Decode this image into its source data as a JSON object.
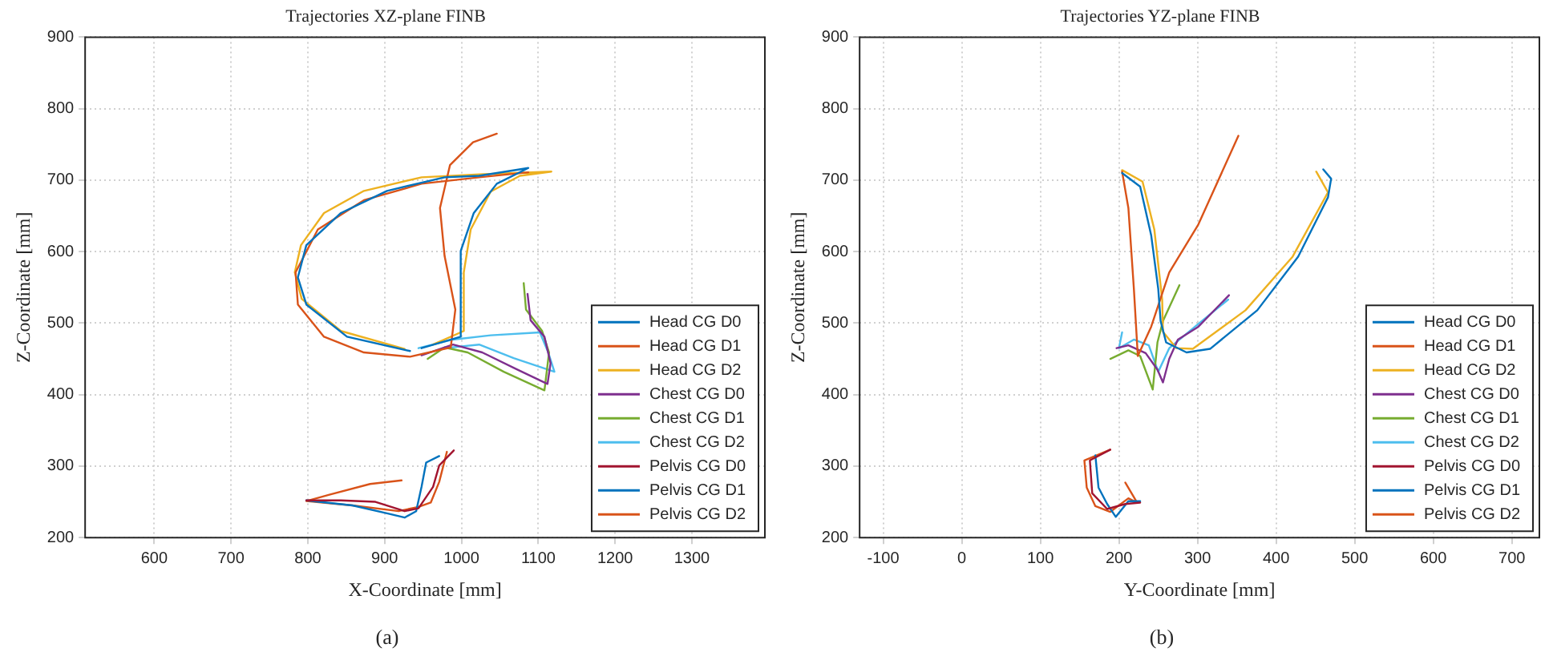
{
  "chart_data": [
    {
      "type": "line",
      "title": "Trajectories XZ-plane FINB",
      "xlabel": "X-Coordinate [mm]",
      "ylabel": "Z-Coordinate [mm]",
      "annotations": [
        "(a)"
      ],
      "xlim": [
        510,
        1395
      ],
      "ylim": [
        200,
        900
      ],
      "xticks": [
        600,
        700,
        800,
        900,
        1000,
        1100,
        1200,
        1300
      ],
      "yticks": [
        200,
        300,
        400,
        500,
        600,
        700,
        800,
        900
      ],
      "grid": true,
      "legend": "bottom right",
      "marker": "none",
      "line_style": "solid",
      "series": [
        {
          "name": "Head CG D0",
          "color": "#0072bd",
          "x": [
            948,
            999,
            999,
            1016,
            1046,
            1087,
            1023,
            978,
            903,
            843,
            798,
            787,
            798,
            851,
            933
          ],
          "values": [
            465,
            481,
            601,
            654,
            695,
            717,
            706,
            704,
            685,
            654,
            609,
            564,
            526,
            481,
            461
          ]
        },
        {
          "name": "Head CG D1",
          "color": "#d95319",
          "x": [
            1087,
            1023,
            948,
            873,
            813,
            784,
            787,
            821,
            873,
            933,
            986,
            992,
            978,
            972,
            985,
            1015,
            1046
          ],
          "values": [
            711,
            704,
            695,
            672,
            631,
            571,
            526,
            481,
            459,
            453,
            466,
            519,
            594,
            661,
            721,
            753,
            765
          ]
        },
        {
          "name": "Head CG D2",
          "color": "#edb120",
          "x": [
            963,
            1003,
            1003,
            1012,
            1038,
            1076,
            1117,
            1023,
            948,
            873,
            821,
            791,
            783,
            792,
            843,
            926
          ],
          "values": [
            470,
            489,
            571,
            631,
            684,
            706,
            712,
            708,
            704,
            685,
            654,
            609,
            571,
            534,
            489,
            464
          ]
        },
        {
          "name": "Chest CG D0",
          "color": "#7e2f8e",
          "x": [
            1086,
            1090,
            1108,
            1116,
            1112,
            1071,
            1027,
            989,
            948
          ],
          "values": [
            541,
            504,
            481,
            444,
            415,
            436,
            459,
            470,
            455
          ]
        },
        {
          "name": "Chest CG D1",
          "color": "#77ac30",
          "x": [
            1081,
            1084,
            1105,
            1114,
            1108,
            1055,
            1008,
            978,
            956
          ],
          "values": [
            556,
            519,
            489,
            459,
            406,
            432,
            459,
            466,
            450
          ]
        },
        {
          "name": "Chest CG D2",
          "color": "#4dbeee",
          "x": [
            944,
            989,
            1038,
            1102,
            1113,
            1121,
            1068,
            1023,
            978
          ],
          "values": [
            465,
            477,
            483,
            487,
            459,
            432,
            451,
            470,
            465
          ]
        },
        {
          "name": "Pelvis CG D0",
          "color": "#a2142f",
          "x": [
            798,
            843,
            888,
            926,
            944,
            963,
            971,
            990
          ],
          "values": [
            252,
            252,
            250,
            237,
            241,
            271,
            301,
            322
          ]
        },
        {
          "name": "Pelvis CG D1",
          "color": "#0072bd",
          "x": [
            798,
            858,
            903,
            926,
            941,
            948,
            954,
            971
          ],
          "values": [
            252,
            245,
            234,
            228,
            237,
            271,
            305,
            314
          ]
        },
        {
          "name": "Pelvis CG D2",
          "color": "#d95319",
          "x": [
            922,
            881,
            828,
            798,
            858,
            918,
            944,
            960,
            971,
            981
          ],
          "values": [
            280,
            275,
            260,
            251,
            245,
            237,
            243,
            249,
            278,
            320
          ]
        }
      ]
    },
    {
      "type": "line",
      "title": "Trajectories YZ-plane FINB",
      "xlabel": "Y-Coordinate [mm]",
      "ylabel": "Z-Coordinate [mm]",
      "annotations": [
        "(b)"
      ],
      "xlim": [
        -130,
        735
      ],
      "ylim": [
        200,
        900
      ],
      "xticks": [
        -100,
        0,
        100,
        200,
        300,
        400,
        500,
        600,
        700
      ],
      "yticks": [
        200,
        300,
        400,
        500,
        600,
        700,
        800,
        900
      ],
      "grid": true,
      "legend": "bottom right",
      "marker": "none",
      "line_style": "solid",
      "series": [
        {
          "name": "Head CG D0",
          "color": "#0072bd",
          "x": [
            204,
            227,
            241,
            250,
            253,
            260,
            286,
            316,
            376,
            428,
            466,
            470,
            460
          ],
          "values": [
            710,
            691,
            623,
            548,
            503,
            473,
            459,
            464,
            518,
            593,
            676,
            702,
            715
          ]
        },
        {
          "name": "Head CG D1",
          "color": "#d95319",
          "x": [
            204,
            212,
            219,
            224,
            241,
            264,
            301,
            352
          ],
          "values": [
            712,
            661,
            548,
            454,
            495,
            571,
            638,
            762
          ]
        },
        {
          "name": "Head CG D2",
          "color": "#edb120",
          "x": [
            204,
            230,
            245,
            255,
            256,
            273,
            294,
            361,
            421,
            466,
            451
          ],
          "values": [
            714,
            698,
            631,
            533,
            488,
            465,
            464,
            518,
            593,
            683,
            712
          ]
        },
        {
          "name": "Chest CG D0",
          "color": "#7e2f8e",
          "x": [
            197,
            212,
            234,
            249,
            256,
            264,
            275,
            301,
            340
          ],
          "values": [
            465,
            469,
            458,
            435,
            417,
            450,
            477,
            495,
            539
          ]
        },
        {
          "name": "Chest CG D1",
          "color": "#77ac30",
          "x": [
            189,
            212,
            227,
            243,
            249,
            256,
            277
          ],
          "values": [
            450,
            462,
            454,
            407,
            473,
            503,
            553
          ]
        },
        {
          "name": "Chest CG D2",
          "color": "#4dbeee",
          "x": [
            204,
            200,
            219,
            238,
            250,
            264,
            301,
            339
          ],
          "values": [
            487,
            465,
            477,
            469,
            432,
            465,
            499,
            533
          ]
        },
        {
          "name": "Pelvis CG D0",
          "color": "#a2142f",
          "x": [
            189,
            163,
            166,
            185,
            208,
            227
          ],
          "values": [
            323,
            308,
            262,
            240,
            247,
            249
          ]
        },
        {
          "name": "Pelvis CG D1",
          "color": "#0072bd",
          "x": [
            170,
            174,
            185,
            196,
            212,
            227
          ],
          "values": [
            315,
            270,
            247,
            229,
            251,
            251
          ]
        },
        {
          "name": "Pelvis CG D2",
          "color": "#d95319",
          "x": [
            189,
            156,
            159,
            170,
            189,
            212,
            223,
            208
          ],
          "values": [
            323,
            308,
            270,
            244,
            236,
            255,
            249,
            277
          ]
        }
      ]
    }
  ]
}
